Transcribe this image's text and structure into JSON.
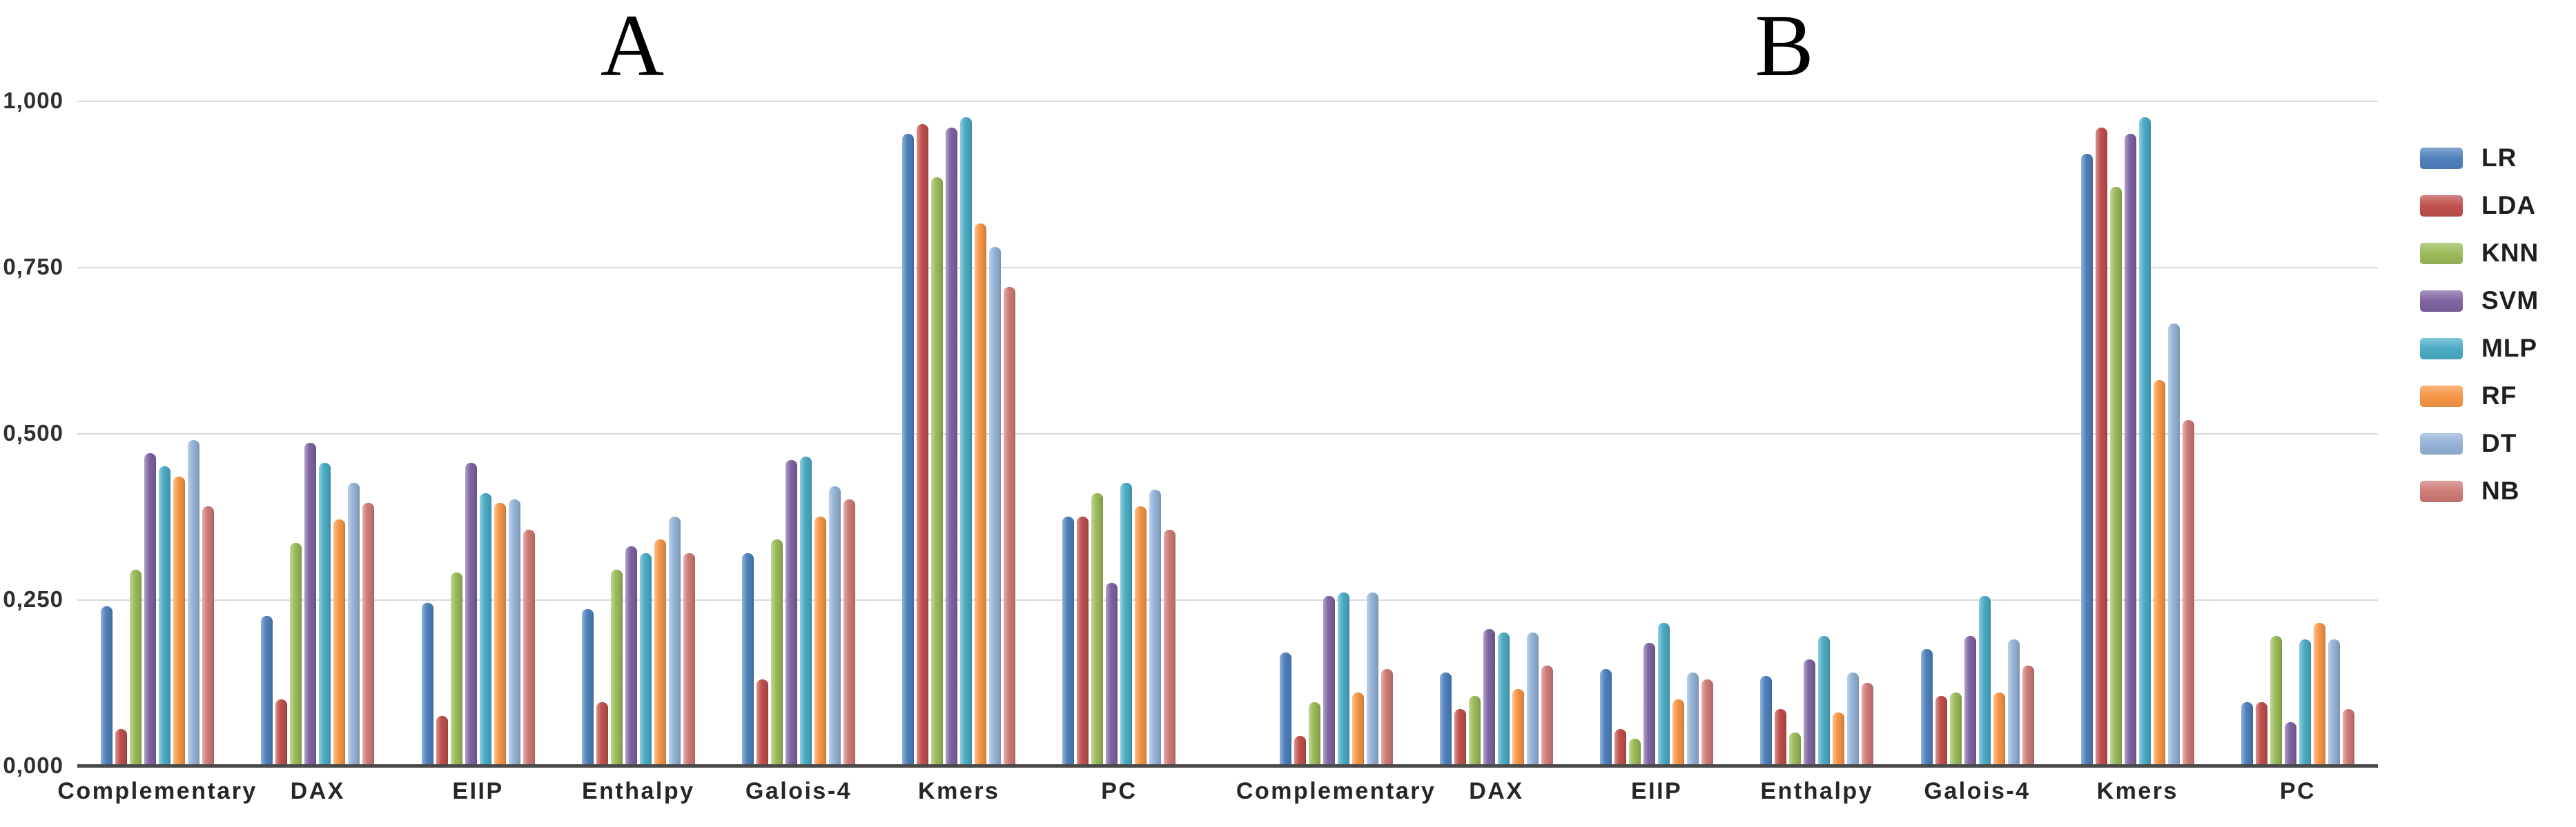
{
  "titles": {
    "panel_a": "A",
    "panel_b": "B"
  },
  "y_axis": {
    "ticks": [
      {
        "label": "1,000",
        "value": 1.0
      },
      {
        "label": "0,750",
        "value": 0.75
      },
      {
        "label": "0,500",
        "value": 0.5
      },
      {
        "label": "0,250",
        "value": 0.25
      },
      {
        "label": "0,000",
        "value": 0.0
      }
    ],
    "min": 0,
    "max": 1
  },
  "legend": {
    "position": "right",
    "items": [
      {
        "label": "LR",
        "color": "#4F81BD"
      },
      {
        "label": "LDA",
        "color": "#C0504D"
      },
      {
        "label": "KNN",
        "color": "#9BBB59"
      },
      {
        "label": "SVM",
        "color": "#8064A2"
      },
      {
        "label": "MLP",
        "color": "#4BACC6"
      },
      {
        "label": "RF",
        "color": "#F79646"
      },
      {
        "label": "DT",
        "color": "#95B3D7"
      },
      {
        "label": "NB",
        "color": "#CF7B77"
      }
    ]
  },
  "chart_data": [
    {
      "type": "bar",
      "title": "A",
      "grid": true,
      "ylim": [
        0,
        1
      ],
      "categories": [
        "Complementary",
        "DAX",
        "EIIP",
        "Enthalpy",
        "Galois-4",
        "Kmers",
        "PC"
      ],
      "series": [
        {
          "name": "LR",
          "color": "#4F81BD",
          "values": [
            0.24,
            0.225,
            0.245,
            0.235,
            0.32,
            0.95,
            0.375
          ]
        },
        {
          "name": "LDA",
          "color": "#C0504D",
          "values": [
            0.055,
            0.1,
            0.075,
            0.095,
            0.13,
            0.965,
            0.375
          ]
        },
        {
          "name": "KNN",
          "color": "#9BBB59",
          "values": [
            0.295,
            0.335,
            0.29,
            0.295,
            0.34,
            0.885,
            0.41
          ]
        },
        {
          "name": "SVM",
          "color": "#8064A2",
          "values": [
            0.47,
            0.485,
            0.455,
            0.33,
            0.46,
            0.96,
            0.275
          ]
        },
        {
          "name": "MLP",
          "color": "#4BACC6",
          "values": [
            0.45,
            0.455,
            0.41,
            0.32,
            0.465,
            0.975,
            0.425
          ]
        },
        {
          "name": "RF",
          "color": "#F79646",
          "values": [
            0.435,
            0.37,
            0.395,
            0.34,
            0.375,
            0.815,
            0.39
          ]
        },
        {
          "name": "DT",
          "color": "#95B3D7",
          "values": [
            0.49,
            0.425,
            0.4,
            0.375,
            0.42,
            0.78,
            0.415
          ]
        },
        {
          "name": "NB",
          "color": "#CF7B77",
          "values": [
            0.39,
            0.395,
            0.355,
            0.32,
            0.4,
            0.72,
            0.355
          ]
        }
      ]
    },
    {
      "type": "bar",
      "title": "B",
      "grid": true,
      "ylim": [
        0,
        1
      ],
      "categories": [
        "Complementary",
        "DAX",
        "EIIP",
        "Enthalpy",
        "Galois-4",
        "Kmers",
        "PC"
      ],
      "series": [
        {
          "name": "LR",
          "color": "#4F81BD",
          "values": [
            0.17,
            0.14,
            0.145,
            0.135,
            0.175,
            0.92,
            0.095
          ]
        },
        {
          "name": "LDA",
          "color": "#C0504D",
          "values": [
            0.045,
            0.085,
            0.055,
            0.085,
            0.105,
            0.96,
            0.095
          ]
        },
        {
          "name": "KNN",
          "color": "#9BBB59",
          "values": [
            0.095,
            0.105,
            0.04,
            0.05,
            0.11,
            0.87,
            0.195
          ]
        },
        {
          "name": "SVM",
          "color": "#8064A2",
          "values": [
            0.255,
            0.205,
            0.185,
            0.16,
            0.195,
            0.95,
            0.065
          ]
        },
        {
          "name": "MLP",
          "color": "#4BACC6",
          "values": [
            0.26,
            0.2,
            0.215,
            0.195,
            0.255,
            0.975,
            0.19
          ]
        },
        {
          "name": "RF",
          "color": "#F79646",
          "values": [
            0.11,
            0.115,
            0.1,
            0.08,
            0.11,
            0.58,
            0.215
          ]
        },
        {
          "name": "DT",
          "color": "#95B3D7",
          "values": [
            0.26,
            0.2,
            0.14,
            0.14,
            0.19,
            0.665,
            0.19
          ]
        },
        {
          "name": "NB",
          "color": "#CF7B77",
          "values": [
            0.145,
            0.15,
            0.13,
            0.125,
            0.15,
            0.52,
            0.085
          ]
        }
      ]
    }
  ]
}
